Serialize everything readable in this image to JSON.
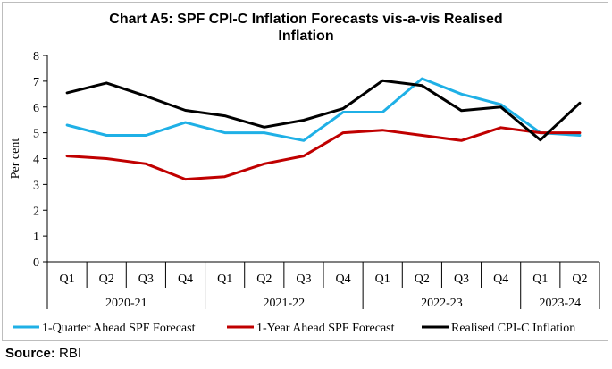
{
  "chart_data": {
    "type": "line",
    "title_line1": "Chart A5: SPF CPI-C Inflation Forecasts vis-a-vis Realised",
    "title_line2": "Inflation",
    "ylabel": "Per cent",
    "ylim": [
      0,
      8
    ],
    "yticks": [
      0,
      1,
      2,
      3,
      4,
      5,
      6,
      7,
      8
    ],
    "categories": [
      "Q1",
      "Q2",
      "Q3",
      "Q4",
      "Q1",
      "Q2",
      "Q3",
      "Q4",
      "Q1",
      "Q2",
      "Q3",
      "Q4",
      "Q1",
      "Q2"
    ],
    "groups": [
      {
        "label": "2020-21",
        "count": 4
      },
      {
        "label": "2021-22",
        "count": 4
      },
      {
        "label": "2022-23",
        "count": 4
      },
      {
        "label": "2023-24",
        "count": 2
      }
    ],
    "series": [
      {
        "name": "1-Quarter Ahead SPF Forecast",
        "color": "#1fb0e6",
        "values": [
          5.3,
          4.9,
          4.9,
          5.4,
          5.0,
          5.0,
          4.7,
          5.8,
          5.8,
          7.1,
          6.5,
          6.1,
          5.0,
          4.9
        ]
      },
      {
        "name": "1-Year Ahead SPF Forecast",
        "color": "#c00000",
        "values": [
          4.1,
          4.0,
          3.8,
          3.2,
          3.3,
          3.8,
          4.1,
          5.0,
          5.1,
          4.9,
          4.7,
          5.2,
          5.0,
          5.0
        ]
      },
      {
        "name": "Realised CPI-C Inflation",
        "color": "#000000",
        "values": [
          6.55,
          6.93,
          6.42,
          5.87,
          5.66,
          5.22,
          5.49,
          5.94,
          7.02,
          6.83,
          5.86,
          6.0,
          4.72,
          6.15
        ]
      }
    ],
    "grid": false,
    "legend_position": "bottom"
  },
  "source": {
    "label": "Source:",
    "text": "RBI"
  }
}
